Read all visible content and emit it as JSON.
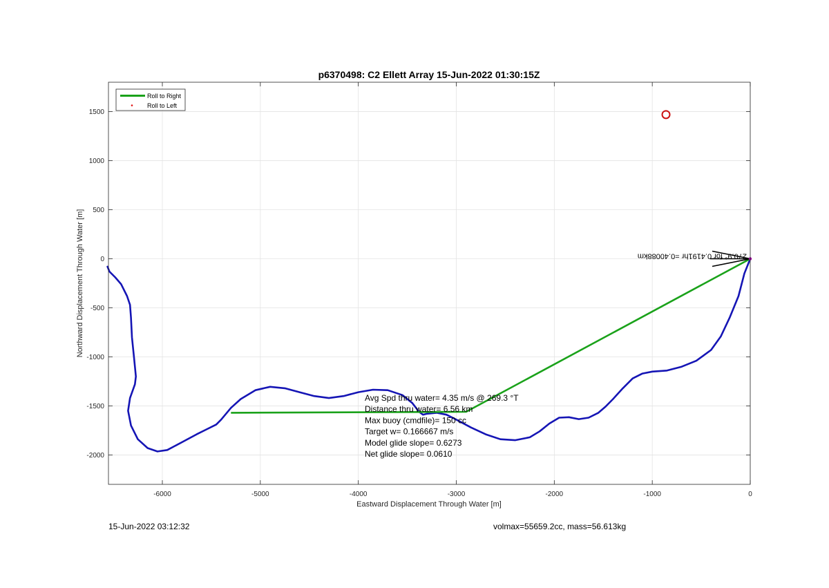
{
  "chart_data": {
    "type": "line",
    "title": "p6370498: C2 Ellett Array 15-Jun-2022 01:30:15Z",
    "xlabel": "Eastward Displacement Through Water [m]",
    "ylabel": "Northward Displacement Through Water [m]",
    "xlim": [
      -6550,
      0
    ],
    "ylim": [
      -2300,
      1800
    ],
    "xticks": [
      -6000,
      -5000,
      -4000,
      -3000,
      -2000,
      -1000,
      0
    ],
    "yticks": [
      -2000,
      -1500,
      -1000,
      -500,
      0,
      500,
      1000,
      1500
    ],
    "grid": true,
    "legend": {
      "position": "top-left",
      "entries": [
        "Roll to Right",
        "Roll to Left"
      ]
    },
    "colors": {
      "track": "#1515b5",
      "roll_right": "#1aa21a",
      "roll_left": "#e01010",
      "target_circle": "#cc1111",
      "arrow": "#000000",
      "endpoint": "#a000a0"
    },
    "series": [
      {
        "name": "track",
        "points": [
          [
            0,
            0
          ],
          [
            -60,
            -150
          ],
          [
            -120,
            -380
          ],
          [
            -210,
            -600
          ],
          [
            -300,
            -790
          ],
          [
            -400,
            -930
          ],
          [
            -550,
            -1040
          ],
          [
            -700,
            -1100
          ],
          [
            -850,
            -1140
          ],
          [
            -1000,
            -1150
          ],
          [
            -1100,
            -1170
          ],
          [
            -1200,
            -1220
          ],
          [
            -1300,
            -1320
          ],
          [
            -1400,
            -1430
          ],
          [
            -1480,
            -1510
          ],
          [
            -1550,
            -1570
          ],
          [
            -1650,
            -1620
          ],
          [
            -1750,
            -1635
          ],
          [
            -1850,
            -1615
          ],
          [
            -1950,
            -1620
          ],
          [
            -2050,
            -1680
          ],
          [
            -2150,
            -1760
          ],
          [
            -2250,
            -1820
          ],
          [
            -2400,
            -1850
          ],
          [
            -2550,
            -1840
          ],
          [
            -2700,
            -1790
          ],
          [
            -2850,
            -1720
          ],
          [
            -3000,
            -1640
          ],
          [
            -3100,
            -1590
          ],
          [
            -3200,
            -1570
          ],
          [
            -3300,
            -1580
          ],
          [
            -3340,
            -1590
          ],
          [
            -3380,
            -1560
          ],
          [
            -3450,
            -1470
          ],
          [
            -3550,
            -1390
          ],
          [
            -3700,
            -1340
          ],
          [
            -3850,
            -1335
          ],
          [
            -4000,
            -1360
          ],
          [
            -4150,
            -1400
          ],
          [
            -4300,
            -1420
          ],
          [
            -4450,
            -1400
          ],
          [
            -4600,
            -1360
          ],
          [
            -4750,
            -1320
          ],
          [
            -4900,
            -1305
          ],
          [
            -5050,
            -1340
          ],
          [
            -5200,
            -1430
          ],
          [
            -5300,
            -1520
          ],
          [
            -5400,
            -1640
          ],
          [
            -5450,
            -1690
          ],
          [
            -5550,
            -1740
          ],
          [
            -5650,
            -1790
          ],
          [
            -5800,
            -1870
          ],
          [
            -5950,
            -1950
          ],
          [
            -6050,
            -1965
          ],
          [
            -6150,
            -1930
          ],
          [
            -6250,
            -1840
          ],
          [
            -6320,
            -1700
          ],
          [
            -6350,
            -1550
          ],
          [
            -6330,
            -1420
          ],
          [
            -6280,
            -1280
          ],
          [
            -6270,
            -1200
          ],
          [
            -6290,
            -1000
          ],
          [
            -6310,
            -800
          ],
          [
            -6320,
            -600
          ],
          [
            -6330,
            -470
          ],
          [
            -6360,
            -380
          ],
          [
            -6420,
            -260
          ],
          [
            -6480,
            -190
          ],
          [
            -6540,
            -130
          ],
          [
            -6560,
            -80
          ]
        ]
      },
      {
        "name": "Roll to Right",
        "points": [
          [
            -5300,
            -1570
          ],
          [
            -2900,
            -1560
          ],
          [
            0,
            0
          ]
        ]
      },
      {
        "name": "Roll to Left",
        "points": []
      }
    ],
    "markers": {
      "target_circle": [
        -860,
        1470
      ],
      "end_point": [
        0,
        0
      ]
    },
    "arrow_label": "270.9° for 0.4191hr =0.40088km",
    "annotations": [
      "Avg Spd thru water=  4.35 m/s @ 269.3 °T",
      "Distance thru water=  6.56 km",
      "Max buoy (cmdfile)= 150 cc",
      "Target w= 0.166667 m/s",
      "Model glide slope= 0.6273",
      "Net glide slope= 0.0610"
    ]
  },
  "footer": {
    "timestamp": "15-Jun-2022 03:12:32",
    "mass_info": "volmax=55659.2cc, mass=56.613kg"
  }
}
